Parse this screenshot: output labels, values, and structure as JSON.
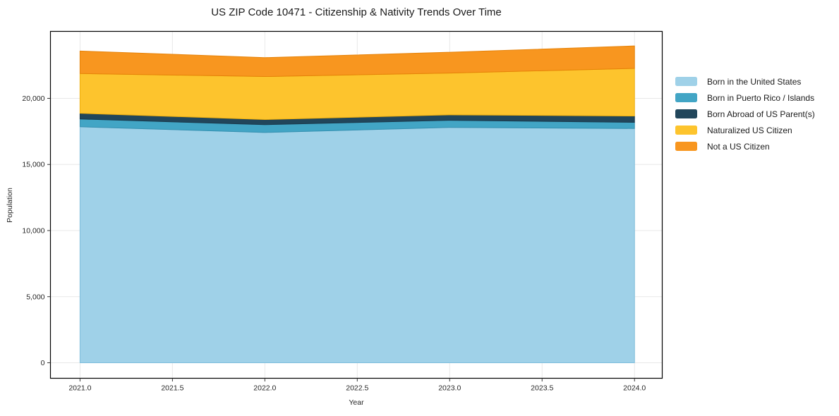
{
  "title": "US ZIP Code 10471 - Citizenship & Nativity Trends Over Time",
  "chart_data": {
    "type": "area",
    "stacked": true,
    "title": "US ZIP Code 10471 - Citizenship & Nativity Trends Over Time",
    "xlabel": "Year",
    "ylabel": "Population",
    "x": [
      2021,
      2022,
      2023,
      2024
    ],
    "series": [
      {
        "name": "Born in the United States",
        "values": [
          17850,
          17420,
          17800,
          17720
        ],
        "color": "#9FD1E8",
        "edge_color": "#7FBEDD"
      },
      {
        "name": "Born in Puerto Rico / Islands",
        "values": [
          590,
          590,
          540,
          465
        ],
        "color": "#42A5C5",
        "edge_color": "#3691B1"
      },
      {
        "name": "Born Abroad of US Parent(s)",
        "values": [
          430,
          390,
          415,
          480
        ],
        "color": "#21465B",
        "edge_color": "#1A3A4C"
      },
      {
        "name": "Naturalized US Citizen",
        "values": [
          3010,
          3250,
          3160,
          3600
        ],
        "color": "#FDC42D",
        "edge_color": "#EFAF0E"
      },
      {
        "name": "Not a US Citizen",
        "values": [
          1700,
          1430,
          1570,
          1700
        ],
        "color": "#F8961F",
        "edge_color": "#E68208"
      }
    ],
    "cumulative_totals": [
      23580,
      23080,
      23485,
      23965
    ],
    "xlim": [
      2020.84,
      2024.15
    ],
    "ylim": [
      -1173,
      25066
    ],
    "xticks": [
      2021.0,
      2021.5,
      2022.0,
      2022.5,
      2023.0,
      2023.5,
      2024.0
    ],
    "xtick_labels": [
      "2021.0",
      "2021.5",
      "2022.0",
      "2022.5",
      "2023.0",
      "2023.5",
      "2024.0"
    ],
    "yticks": [
      0,
      5000,
      10000,
      15000,
      20000
    ],
    "ytick_labels": [
      "0",
      "5,000",
      "10,000",
      "15,000",
      "20,000"
    ],
    "grid": true,
    "grid_color": "#E8E8E8",
    "spine_color": "#000000",
    "tick_color": "#333333",
    "legend_position": "right-outside"
  }
}
